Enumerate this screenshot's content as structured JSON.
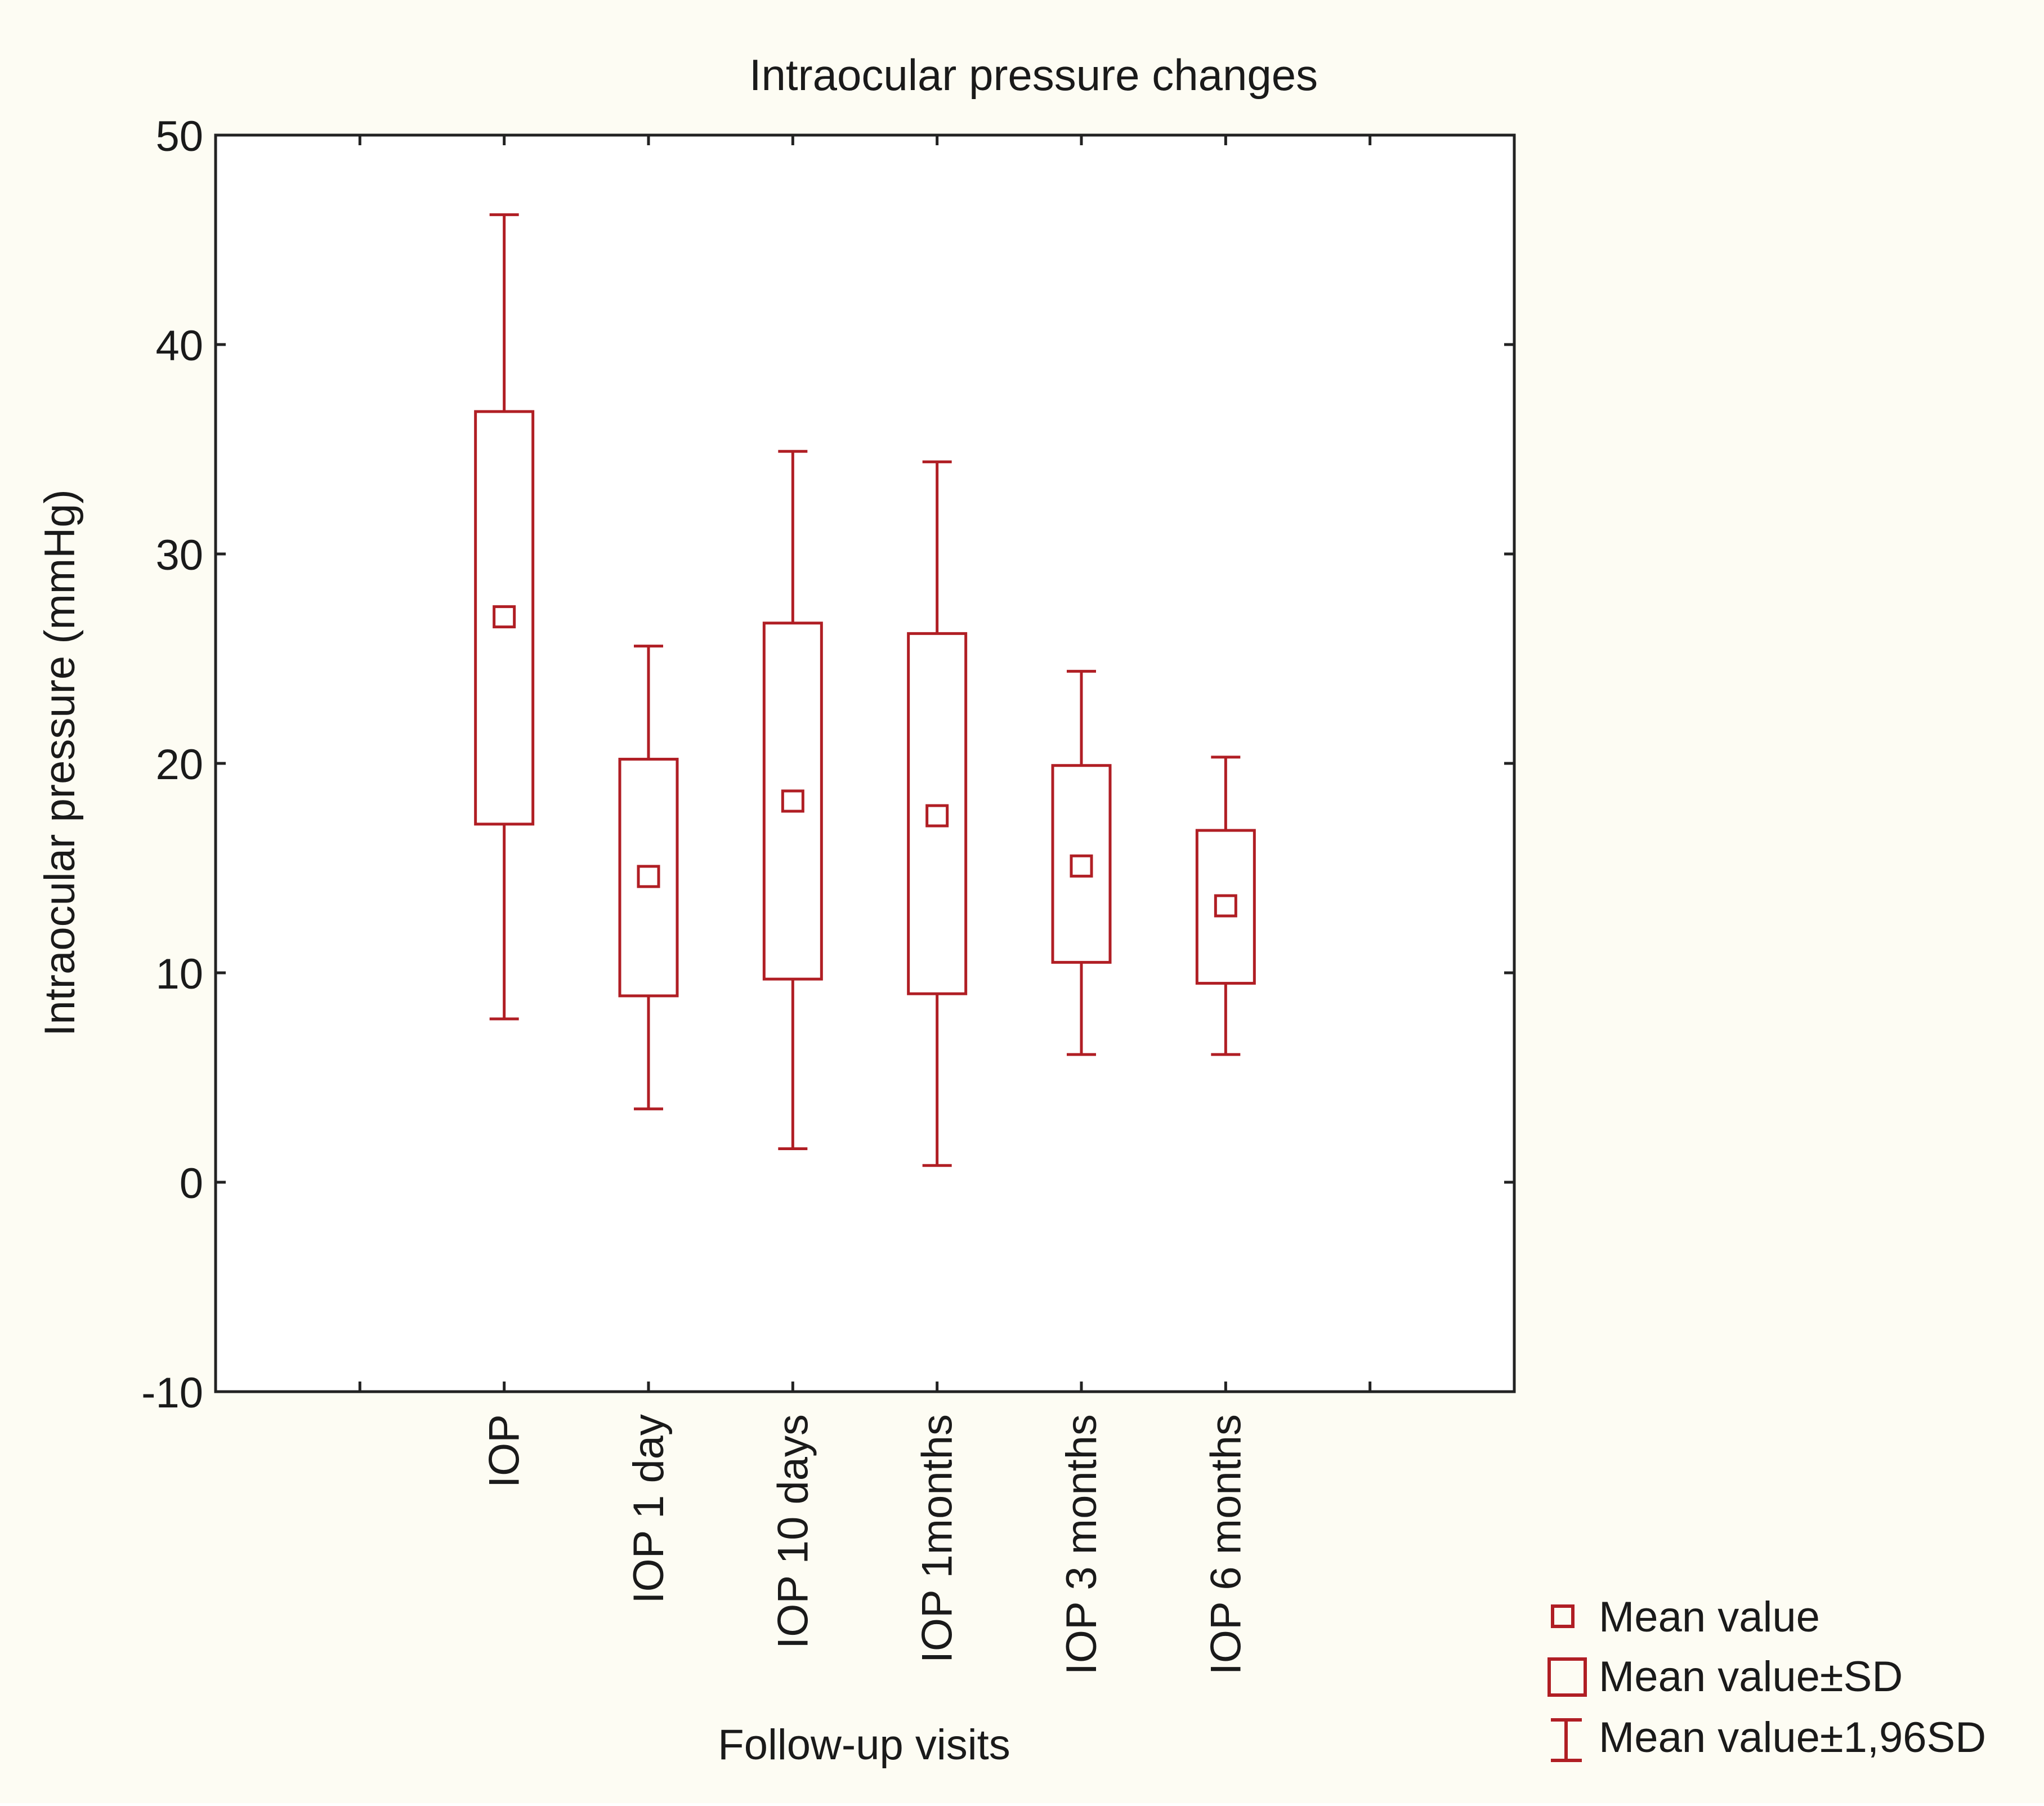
{
  "colors": {
    "background": "#fdfcf3",
    "plot_background": "#ffffff",
    "series": "#b01e24",
    "gridline": "#d4d4d4",
    "axis": "#222222"
  },
  "chart_data": {
    "type": "box",
    "title": "Intraocular pressure changes",
    "xlabel": "Follow-up visits",
    "ylabel": "Intraocular pressure (mmHg)",
    "ylim": [
      -10,
      50
    ],
    "yticks": [
      -10,
      0,
      10,
      20,
      30,
      40,
      50
    ],
    "grid": true,
    "legend_position": "bottom-right",
    "categories": [
      "IOP",
      "IOP 1 day",
      "IOP 10 days",
      "IOP 1months",
      "IOP 3 months",
      "IOP 6 months"
    ],
    "mean": [
      27.0,
      14.6,
      18.2,
      17.5,
      15.1,
      13.2
    ],
    "mean_minus_sd": [
      17.1,
      8.9,
      9.7,
      9.0,
      10.5,
      9.5
    ],
    "mean_plus_sd": [
      36.8,
      20.2,
      26.7,
      26.2,
      19.9,
      16.8
    ],
    "mean_minus_196sd": [
      7.8,
      3.5,
      1.6,
      0.8,
      6.1,
      6.1
    ],
    "mean_plus_196sd": [
      46.2,
      25.6,
      34.9,
      34.4,
      24.4,
      20.3
    ],
    "legend": [
      {
        "symbol": "mean",
        "label": "Mean value"
      },
      {
        "symbol": "box",
        "label": "Mean value±SD"
      },
      {
        "symbol": "whisker",
        "label": "Mean value±1,96SD"
      }
    ]
  }
}
